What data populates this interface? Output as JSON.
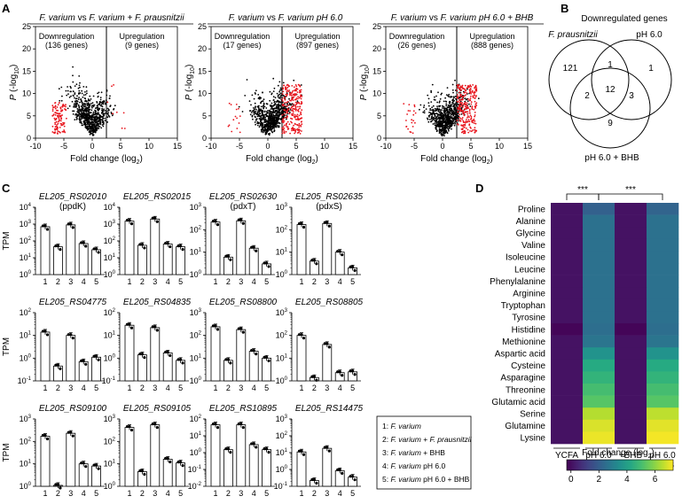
{
  "panel_labels": {
    "A": "A",
    "B": "B",
    "C": "C",
    "D": "D"
  },
  "volcano": {
    "ylabel_p": "P",
    "ylabel_rest": "(-log",
    "ylabel_sub": "10",
    "ylabel_close": ")",
    "xlabel": "Fold change (log",
    "xlabel_sub": "2",
    "xlabel_close": ")",
    "plots": [
      {
        "title_a": "F. varium",
        "title_vs": " vs ",
        "title_b": "F. varium + F. prausnitzii",
        "down_label": "Downregulation",
        "down_count": "(136 genes)",
        "up_label": "Upregulation",
        "up_count": "(9 genes)"
      },
      {
        "title_a": "F. varium",
        "title_vs": " vs ",
        "title_b": "F. varium pH 6.0",
        "down_label": "Downregulation",
        "down_count": "(17 genes)",
        "up_label": "Upregulation",
        "up_count": "(897 genes)"
      },
      {
        "title_a": "F. varium",
        "title_vs": " vs ",
        "title_b": "F. varium pH 6.0 + BHB",
        "down_label": "Downregulation",
        "down_count": "(26 genes)",
        "up_label": "Upregulation",
        "up_count": "(888 genes)"
      }
    ]
  },
  "venn": {
    "title": "Downregulated genes",
    "set_a": "F. prausnitzii",
    "set_b": "pH 6.0",
    "set_c": "pH 6.0 + BHB",
    "only_a": "121",
    "only_b": "1",
    "ab": "1",
    "ac": "2",
    "abc": "12",
    "bc": "3",
    "only_c": "9"
  },
  "tpm": {
    "ylabel": "TPM",
    "categories": [
      "1",
      "2",
      "3",
      "4",
      "5"
    ],
    "genes": [
      {
        "name": "EL205_RS02010",
        "sub": "(ppdK)",
        "yticks": [
          "10^4",
          "10^3",
          "10^2",
          "10^1",
          "10^0"
        ],
        "ylim_log": [
          0,
          4
        ],
        "values": [
          700,
          45,
          900,
          70,
          30
        ]
      },
      {
        "name": "EL205_RS02015",
        "sub": "",
        "yticks": [
          "10^4",
          "10^3",
          "10^2",
          "10^1",
          "10^0"
        ],
        "ylim_log": [
          0,
          4
        ],
        "values": [
          1500,
          55,
          2000,
          65,
          45
        ]
      },
      {
        "name": "EL205_RS02630",
        "sub": "(pdxT)",
        "yticks": [
          "10^3",
          "10^2",
          "10^1",
          "10^0"
        ],
        "ylim_log": [
          0,
          3
        ],
        "values": [
          220,
          6,
          250,
          15,
          3
        ]
      },
      {
        "name": "EL205_RS02635",
        "sub": "(pdxS)",
        "yticks": [
          "10^3",
          "10^2",
          "10^1",
          "10^0"
        ],
        "ylim_log": [
          0,
          3
        ],
        "values": [
          170,
          4,
          190,
          10,
          2
        ]
      },
      {
        "name": "EL205_RS04775",
        "sub": "",
        "yticks": [
          "10^2",
          "10^1",
          "10^0",
          "10^-1"
        ],
        "ylim_log": [
          -1,
          2
        ],
        "values": [
          14,
          0.45,
          10,
          0.7,
          1.1
        ]
      },
      {
        "name": "EL205_RS04835",
        "sub": "",
        "yticks": [
          "10^2",
          "10^1",
          "10^0",
          "10^-1"
        ],
        "ylim_log": [
          -1,
          2
        ],
        "values": [
          28,
          1.4,
          22,
          1.7,
          0.8
        ]
      },
      {
        "name": "EL205_RS08800",
        "sub": "",
        "yticks": [
          "10^3",
          "10^2",
          "10^1",
          "10^0"
        ],
        "ylim_log": [
          0,
          3
        ],
        "values": [
          240,
          8,
          180,
          20,
          10
        ]
      },
      {
        "name": "EL205_RS08805",
        "sub": "",
        "yticks": [
          "10^3",
          "10^2",
          "10^1",
          "10^0"
        ],
        "ylim_log": [
          0,
          3
        ],
        "values": [
          100,
          1.4,
          40,
          2.3,
          2.5
        ]
      },
      {
        "name": "EL205_RS09100",
        "sub": "",
        "yticks": [
          "10^3",
          "10^2",
          "10^1",
          "10^0"
        ],
        "ylim_log": [
          0,
          3
        ],
        "values": [
          170,
          1.1,
          230,
          10,
          8
        ]
      },
      {
        "name": "EL205_RS09105",
        "sub": "",
        "yticks": [
          "10^3",
          "10^2",
          "10^1",
          "10^0"
        ],
        "ylim_log": [
          0,
          3
        ],
        "values": [
          420,
          4.5,
          550,
          16,
          11
        ]
      },
      {
        "name": "EL205_RS10895",
        "sub": "",
        "yticks": [
          "10^2",
          "10^1",
          "10^0",
          "10^-1",
          "10^-2"
        ],
        "ylim_log": [
          -2,
          2
        ],
        "values": [
          45,
          1.5,
          45,
          3,
          1.5
        ]
      },
      {
        "name": "EL205_RS14475",
        "sub": "",
        "yticks": [
          "10^3",
          "10^2",
          "10^1",
          "10^0",
          "10^-1"
        ],
        "ylim_log": [
          -1,
          3
        ],
        "values": [
          11,
          0.22,
          18,
          0.85,
          0.35
        ]
      }
    ],
    "legend": [
      {
        "num": "1: ",
        "text": "F. varium",
        "extra": ""
      },
      {
        "num": "2: ",
        "text": "F. varium + F. prausnitzii",
        "extra": ""
      },
      {
        "num": "3: ",
        "text": "F. varium",
        "extra": " + BHB"
      },
      {
        "num": "4: ",
        "text": "F. varium",
        "extra": " pH 6.0"
      },
      {
        "num": "5: ",
        "text": "F. varium",
        "extra": " pH 6.0 + BHB"
      }
    ]
  },
  "chart_data": {
    "type": "heatmap",
    "rows": [
      "Proline",
      "Alanine",
      "Glycine",
      "Valine",
      "Isoleucine",
      "Leucine",
      "Phenylalanine",
      "Arginine",
      "Tryptophan",
      "Tyrosine",
      "Histidine",
      "Methionine",
      "Aspartic acid",
      "Cysteine",
      "Asparagine",
      "Threonine",
      "Glutamic acid",
      "Serine",
      "Glutamine",
      "Lysine"
    ],
    "columns": [
      "YCFA",
      "pH 6.0",
      "+BHB",
      "pH 6.0 +BHB"
    ],
    "values": [
      [
        0.1,
        2.1,
        0.1,
        2.2
      ],
      [
        0.1,
        2.6,
        0.1,
        2.6
      ],
      [
        0.1,
        2.6,
        0.1,
        2.6
      ],
      [
        0.1,
        2.6,
        0.1,
        2.6
      ],
      [
        0.1,
        2.6,
        0.1,
        2.6
      ],
      [
        0.1,
        2.6,
        0.1,
        2.6
      ],
      [
        0.1,
        2.6,
        0.1,
        2.6
      ],
      [
        0.1,
        2.6,
        0.1,
        2.6
      ],
      [
        0.1,
        2.6,
        0.1,
        2.6
      ],
      [
        0.1,
        2.6,
        0.1,
        2.6
      ],
      [
        -0.2,
        2.5,
        -0.2,
        2.5
      ],
      [
        0.1,
        2.7,
        0.1,
        2.7
      ],
      [
        0.1,
        3.6,
        0.1,
        3.6
      ],
      [
        0.1,
        4.4,
        0.1,
        4.4
      ],
      [
        0.1,
        4.7,
        0.1,
        4.7
      ],
      [
        0.1,
        5.0,
        0.1,
        5.0
      ],
      [
        0.1,
        5.3,
        0.1,
        5.3
      ],
      [
        0.1,
        6.5,
        0.1,
        6.6
      ],
      [
        0.1,
        6.9,
        0.1,
        7.0
      ],
      [
        0.1,
        7.1,
        0.1,
        7.2
      ]
    ],
    "colorbar_label": "Fold change (log",
    "colorbar_sub": "2",
    "colorbar_close": ")",
    "colorbar_ticks": [
      "0",
      "2",
      "4",
      "6"
    ],
    "colorbar_range": [
      -0.3,
      7.3
    ],
    "significance": [
      "***",
      "***"
    ]
  }
}
